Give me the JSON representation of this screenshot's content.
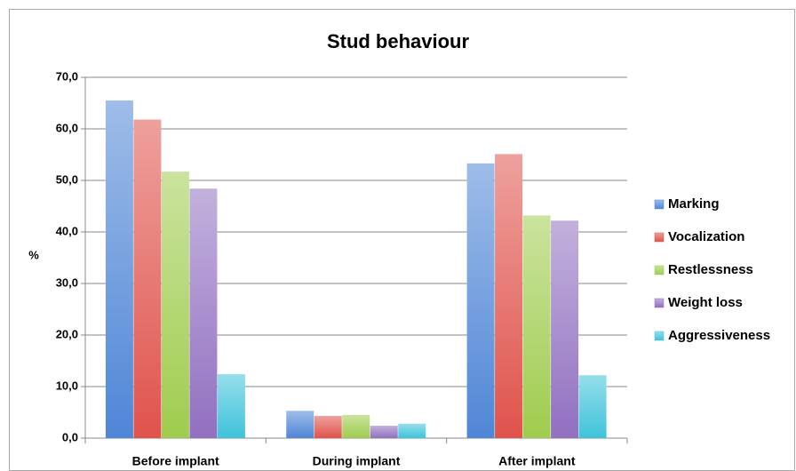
{
  "chart_data": {
    "type": "bar",
    "title": "Stud behaviour",
    "y_label": "%",
    "categories": [
      "Before implant",
      "During implant",
      "After implant"
    ],
    "series": [
      {
        "name": "Marking",
        "color": "#4f86d6",
        "values": [
          65.5,
          5.3,
          53.3
        ]
      },
      {
        "name": "Vocalization",
        "color": "#e0534c",
        "values": [
          61.8,
          4.3,
          55.1
        ]
      },
      {
        "name": "Restlessness",
        "color": "#9fcc4e",
        "values": [
          51.7,
          4.5,
          43.2
        ]
      },
      {
        "name": "Weight loss",
        "color": "#9170c0",
        "values": [
          48.4,
          2.4,
          42.2
        ]
      },
      {
        "name": "Aggressiveness",
        "color": "#3fc3da",
        "values": [
          12.4,
          2.8,
          12.2
        ]
      }
    ],
    "ylim": [
      0,
      70
    ],
    "yticks": [
      {
        "value": 0,
        "label": "0,0"
      },
      {
        "value": 10,
        "label": "10,0"
      },
      {
        "value": 20,
        "label": "20,0"
      },
      {
        "value": 30,
        "label": "30,0"
      },
      {
        "value": 40,
        "label": "40,0"
      },
      {
        "value": 50,
        "label": "50,0"
      },
      {
        "value": 60,
        "label": "60,0"
      },
      {
        "value": 70,
        "label": "70,0"
      }
    ],
    "grid": true,
    "legend": "right"
  }
}
